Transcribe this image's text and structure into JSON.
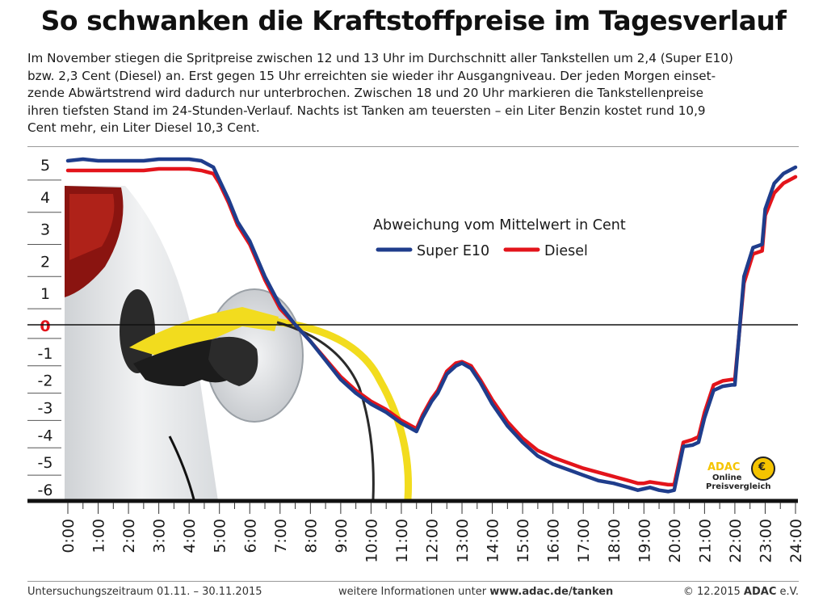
{
  "title": "So schwanken die Kraftstoffpreise im Tagesverlauf",
  "intro_lines": [
    "Im November stiegen die Spritpreise zwischen 12 und 13 Uhr im Durchschnitt aller Tankstellen um 2,4 (Super E10)",
    "bzw. 2,3 Cent (Diesel) an. Erst gegen 15 Uhr erreichten sie wieder ihr Ausgangniveau. Der jeden Morgen einset-",
    "zende Abwärtstrend wird dadurch nur unterbrochen. Zwischen 18 und 20 Uhr markieren die Tankstellenpreise",
    "ihren tiefsten Stand im 24-Stunden-Verlauf. Nachts ist Tanken am teuersten – ein Liter Benzin kostet rund 10,9",
    "Cent mehr, ein Liter Diesel 10,3 Cent."
  ],
  "badge": {
    "brand": "ADAC",
    "line1": "Online",
    "line2": "Preisvergleich",
    "symbol": "€"
  },
  "footer": {
    "left": "Untersuchungszeitraum 01.11. – 30.11.2015",
    "mid_prefix": "weitere Informationen unter ",
    "mid_link": "www.adac.de/tanken",
    "right_prefix": "© 12.2015 ",
    "right_brand": "ADAC",
    "right_suffix": " e.V."
  },
  "colors": {
    "super_e10": "#1f3d8c",
    "diesel": "#e3141b",
    "zero_label": "#e3141b",
    "nozzle_yellow": "#f2dc1e",
    "car_white": "#e6e8ea"
  },
  "chart_data": {
    "type": "line",
    "title": "",
    "legend_title": "Abweichung vom Mittelwert in Cent",
    "legend_position": "top-center",
    "x_ticks": [
      "0:00",
      "1:00",
      "2:00",
      "3:00",
      "4:00",
      "5:00",
      "6:00",
      "7:00",
      "8:00",
      "9:00",
      "10:00",
      "11:00",
      "12:00",
      "13:00",
      "14:00",
      "15:00",
      "16:00",
      "17:00",
      "18:00",
      "19:00",
      "20:00",
      "21:00",
      "22:00",
      "23:00",
      "24:00"
    ],
    "y_ticks": [
      "5",
      "4",
      "3",
      "2",
      "1",
      "0",
      "-1",
      "-2",
      "-3",
      "-4",
      "-5",
      "-6"
    ],
    "xlim": [
      0,
      24
    ],
    "ylim": [
      -6.5,
      5.5
    ],
    "grid": "horizontal-ticks",
    "series": [
      {
        "name": "Super E10",
        "color": "#1f3d8c",
        "x": [
          0,
          0.5,
          1,
          1.5,
          2,
          2.5,
          3,
          3.5,
          4,
          4.4,
          4.8,
          5,
          5.3,
          5.6,
          6,
          6.5,
          7,
          7.5,
          8,
          8.5,
          9,
          9.5,
          10,
          10.5,
          11,
          11.5,
          11.7,
          12,
          12.2,
          12.5,
          12.8,
          13,
          13.3,
          13.6,
          14,
          14.5,
          15,
          15.5,
          16,
          16.5,
          17,
          17.5,
          18,
          18.5,
          18.8,
          19,
          19.2,
          19.5,
          19.8,
          20,
          20.3,
          20.6,
          20.8,
          21,
          21.3,
          21.6,
          21.9,
          22,
          22.3,
          22.6,
          22.9,
          23,
          23.3,
          23.6,
          24
        ],
        "values": [
          5.1,
          5.15,
          5.1,
          5.1,
          5.1,
          5.1,
          5.15,
          5.15,
          5.15,
          5.1,
          4.9,
          4.5,
          3.9,
          3.2,
          2.6,
          1.5,
          0.6,
          0.0,
          -0.6,
          -1.3,
          -2.0,
          -2.5,
          -2.9,
          -3.2,
          -3.6,
          -3.9,
          -3.4,
          -2.8,
          -2.5,
          -1.8,
          -1.5,
          -1.4,
          -1.6,
          -2.1,
          -2.9,
          -3.7,
          -4.3,
          -4.8,
          -5.1,
          -5.3,
          -5.5,
          -5.7,
          -5.8,
          -5.95,
          -6.05,
          -6.0,
          -5.95,
          -6.05,
          -6.1,
          -6.05,
          -4.45,
          -4.4,
          -4.3,
          -3.4,
          -2.4,
          -2.25,
          -2.2,
          -2.2,
          1.5,
          2.4,
          2.5,
          3.6,
          4.4,
          4.7,
          4.9
        ]
      },
      {
        "name": "Diesel",
        "color": "#e3141b",
        "x": [
          0,
          0.5,
          1,
          1.5,
          2,
          2.5,
          3,
          3.5,
          4,
          4.4,
          4.8,
          5,
          5.3,
          5.6,
          6,
          6.5,
          7,
          7.5,
          8,
          8.5,
          9,
          9.5,
          10,
          10.5,
          11,
          11.5,
          11.7,
          12,
          12.2,
          12.5,
          12.8,
          13,
          13.3,
          13.6,
          14,
          14.5,
          15,
          15.5,
          16,
          16.5,
          17,
          17.5,
          18,
          18.5,
          18.8,
          19,
          19.2,
          19.5,
          19.8,
          20,
          20.3,
          20.6,
          20.8,
          21,
          21.3,
          21.6,
          21.9,
          22,
          22.3,
          22.6,
          22.9,
          23,
          23.3,
          23.6,
          24
        ],
        "values": [
          4.8,
          4.8,
          4.8,
          4.8,
          4.8,
          4.8,
          4.85,
          4.85,
          4.85,
          4.8,
          4.7,
          4.4,
          3.8,
          3.1,
          2.5,
          1.4,
          0.5,
          0.0,
          -0.6,
          -1.25,
          -1.9,
          -2.4,
          -2.8,
          -3.1,
          -3.5,
          -3.8,
          -3.3,
          -2.7,
          -2.4,
          -1.7,
          -1.4,
          -1.35,
          -1.5,
          -2.0,
          -2.75,
          -3.55,
          -4.15,
          -4.6,
          -4.85,
          -5.05,
          -5.25,
          -5.4,
          -5.55,
          -5.7,
          -5.8,
          -5.8,
          -5.75,
          -5.8,
          -5.85,
          -5.85,
          -4.3,
          -4.2,
          -4.1,
          -3.2,
          -2.2,
          -2.05,
          -2.0,
          -2.0,
          1.3,
          2.2,
          2.3,
          3.4,
          4.1,
          4.4,
          4.6
        ]
      }
    ]
  }
}
